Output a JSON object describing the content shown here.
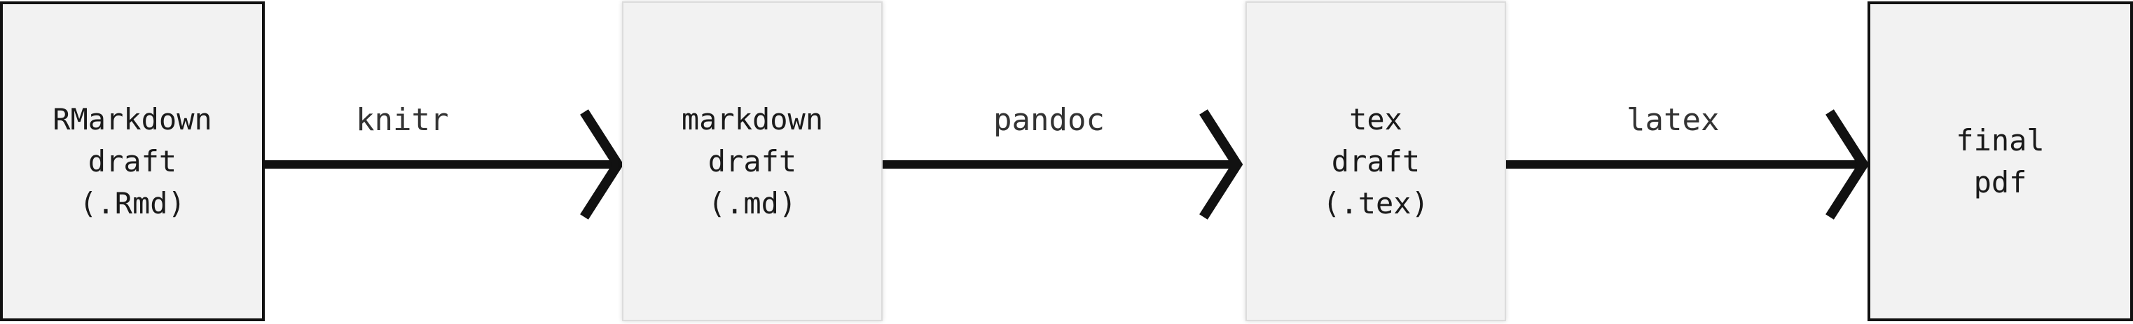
{
  "nodes": [
    {
      "id": "rmd",
      "lines": [
        "RMarkdown",
        "draft",
        "(.Rmd)"
      ]
    },
    {
      "id": "md",
      "lines": [
        "markdown",
        "draft",
        "(.md)"
      ]
    },
    {
      "id": "tex",
      "lines": [
        "tex",
        "draft",
        "(.tex)"
      ]
    },
    {
      "id": "pdf",
      "lines": [
        "final",
        "pdf"
      ]
    }
  ],
  "edges": [
    {
      "from": "rmd",
      "to": "md",
      "label": "knitr"
    },
    {
      "from": "md",
      "to": "tex",
      "label": "pandoc"
    },
    {
      "from": "tex",
      "to": "pdf",
      "label": "latex"
    }
  ],
  "colors": {
    "box_fill": "#f2f2f2",
    "stroke": "#111111",
    "text": "#1a1a1a"
  }
}
